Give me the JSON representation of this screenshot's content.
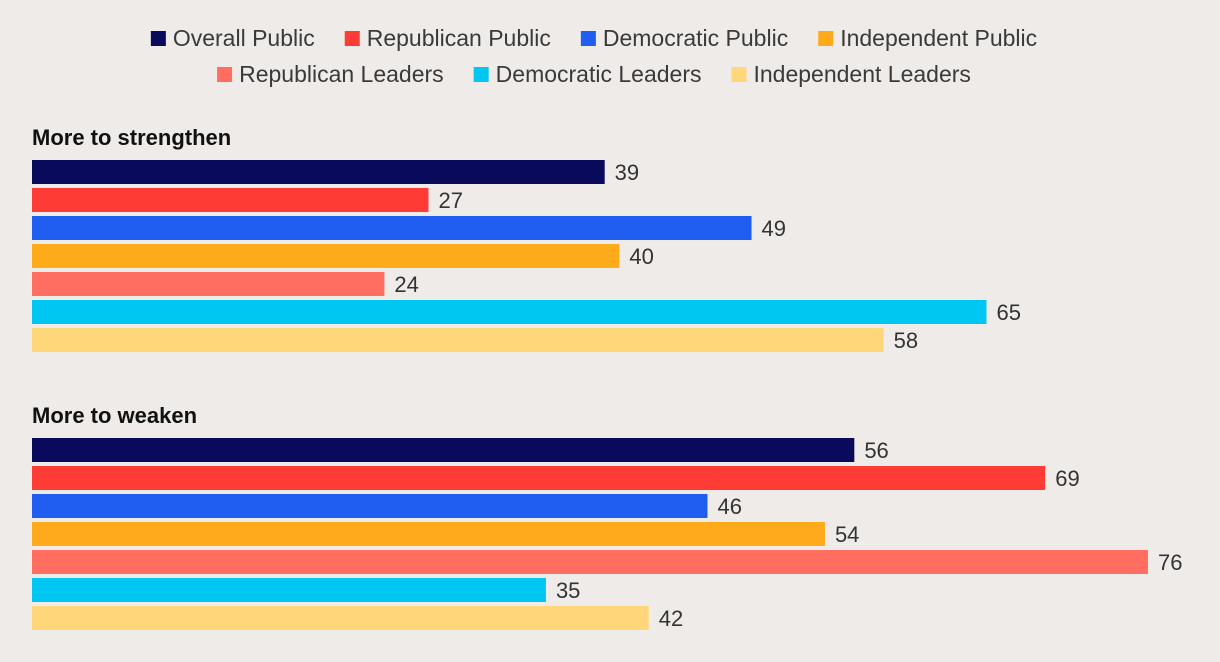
{
  "chart_data": {
    "type": "bar",
    "orientation": "horizontal",
    "title": "",
    "xlabel": "",
    "ylabel": "",
    "xlim": [
      0,
      76
    ],
    "grid": false,
    "legend_position": "top",
    "series": [
      {
        "name": "Overall Public",
        "color": "#0a0a5c"
      },
      {
        "name": "Republican Public",
        "color": "#ff3b36"
      },
      {
        "name": "Democratic Public",
        "color": "#1f5ef0"
      },
      {
        "name": "Independent Public",
        "color": "#ffaa1a"
      },
      {
        "name": "Republican Leaders",
        "color": "#ff6e5f"
      },
      {
        "name": "Democratic Leaders",
        "color": "#00c6f2"
      },
      {
        "name": "Independent Leaders",
        "color": "#ffd67a"
      }
    ],
    "groups": [
      {
        "label": "More to strengthen",
        "values": [
          39,
          27,
          49,
          40,
          24,
          65,
          58
        ]
      },
      {
        "label": "More to weaken",
        "values": [
          56,
          69,
          46,
          54,
          76,
          35,
          42
        ]
      }
    ]
  }
}
